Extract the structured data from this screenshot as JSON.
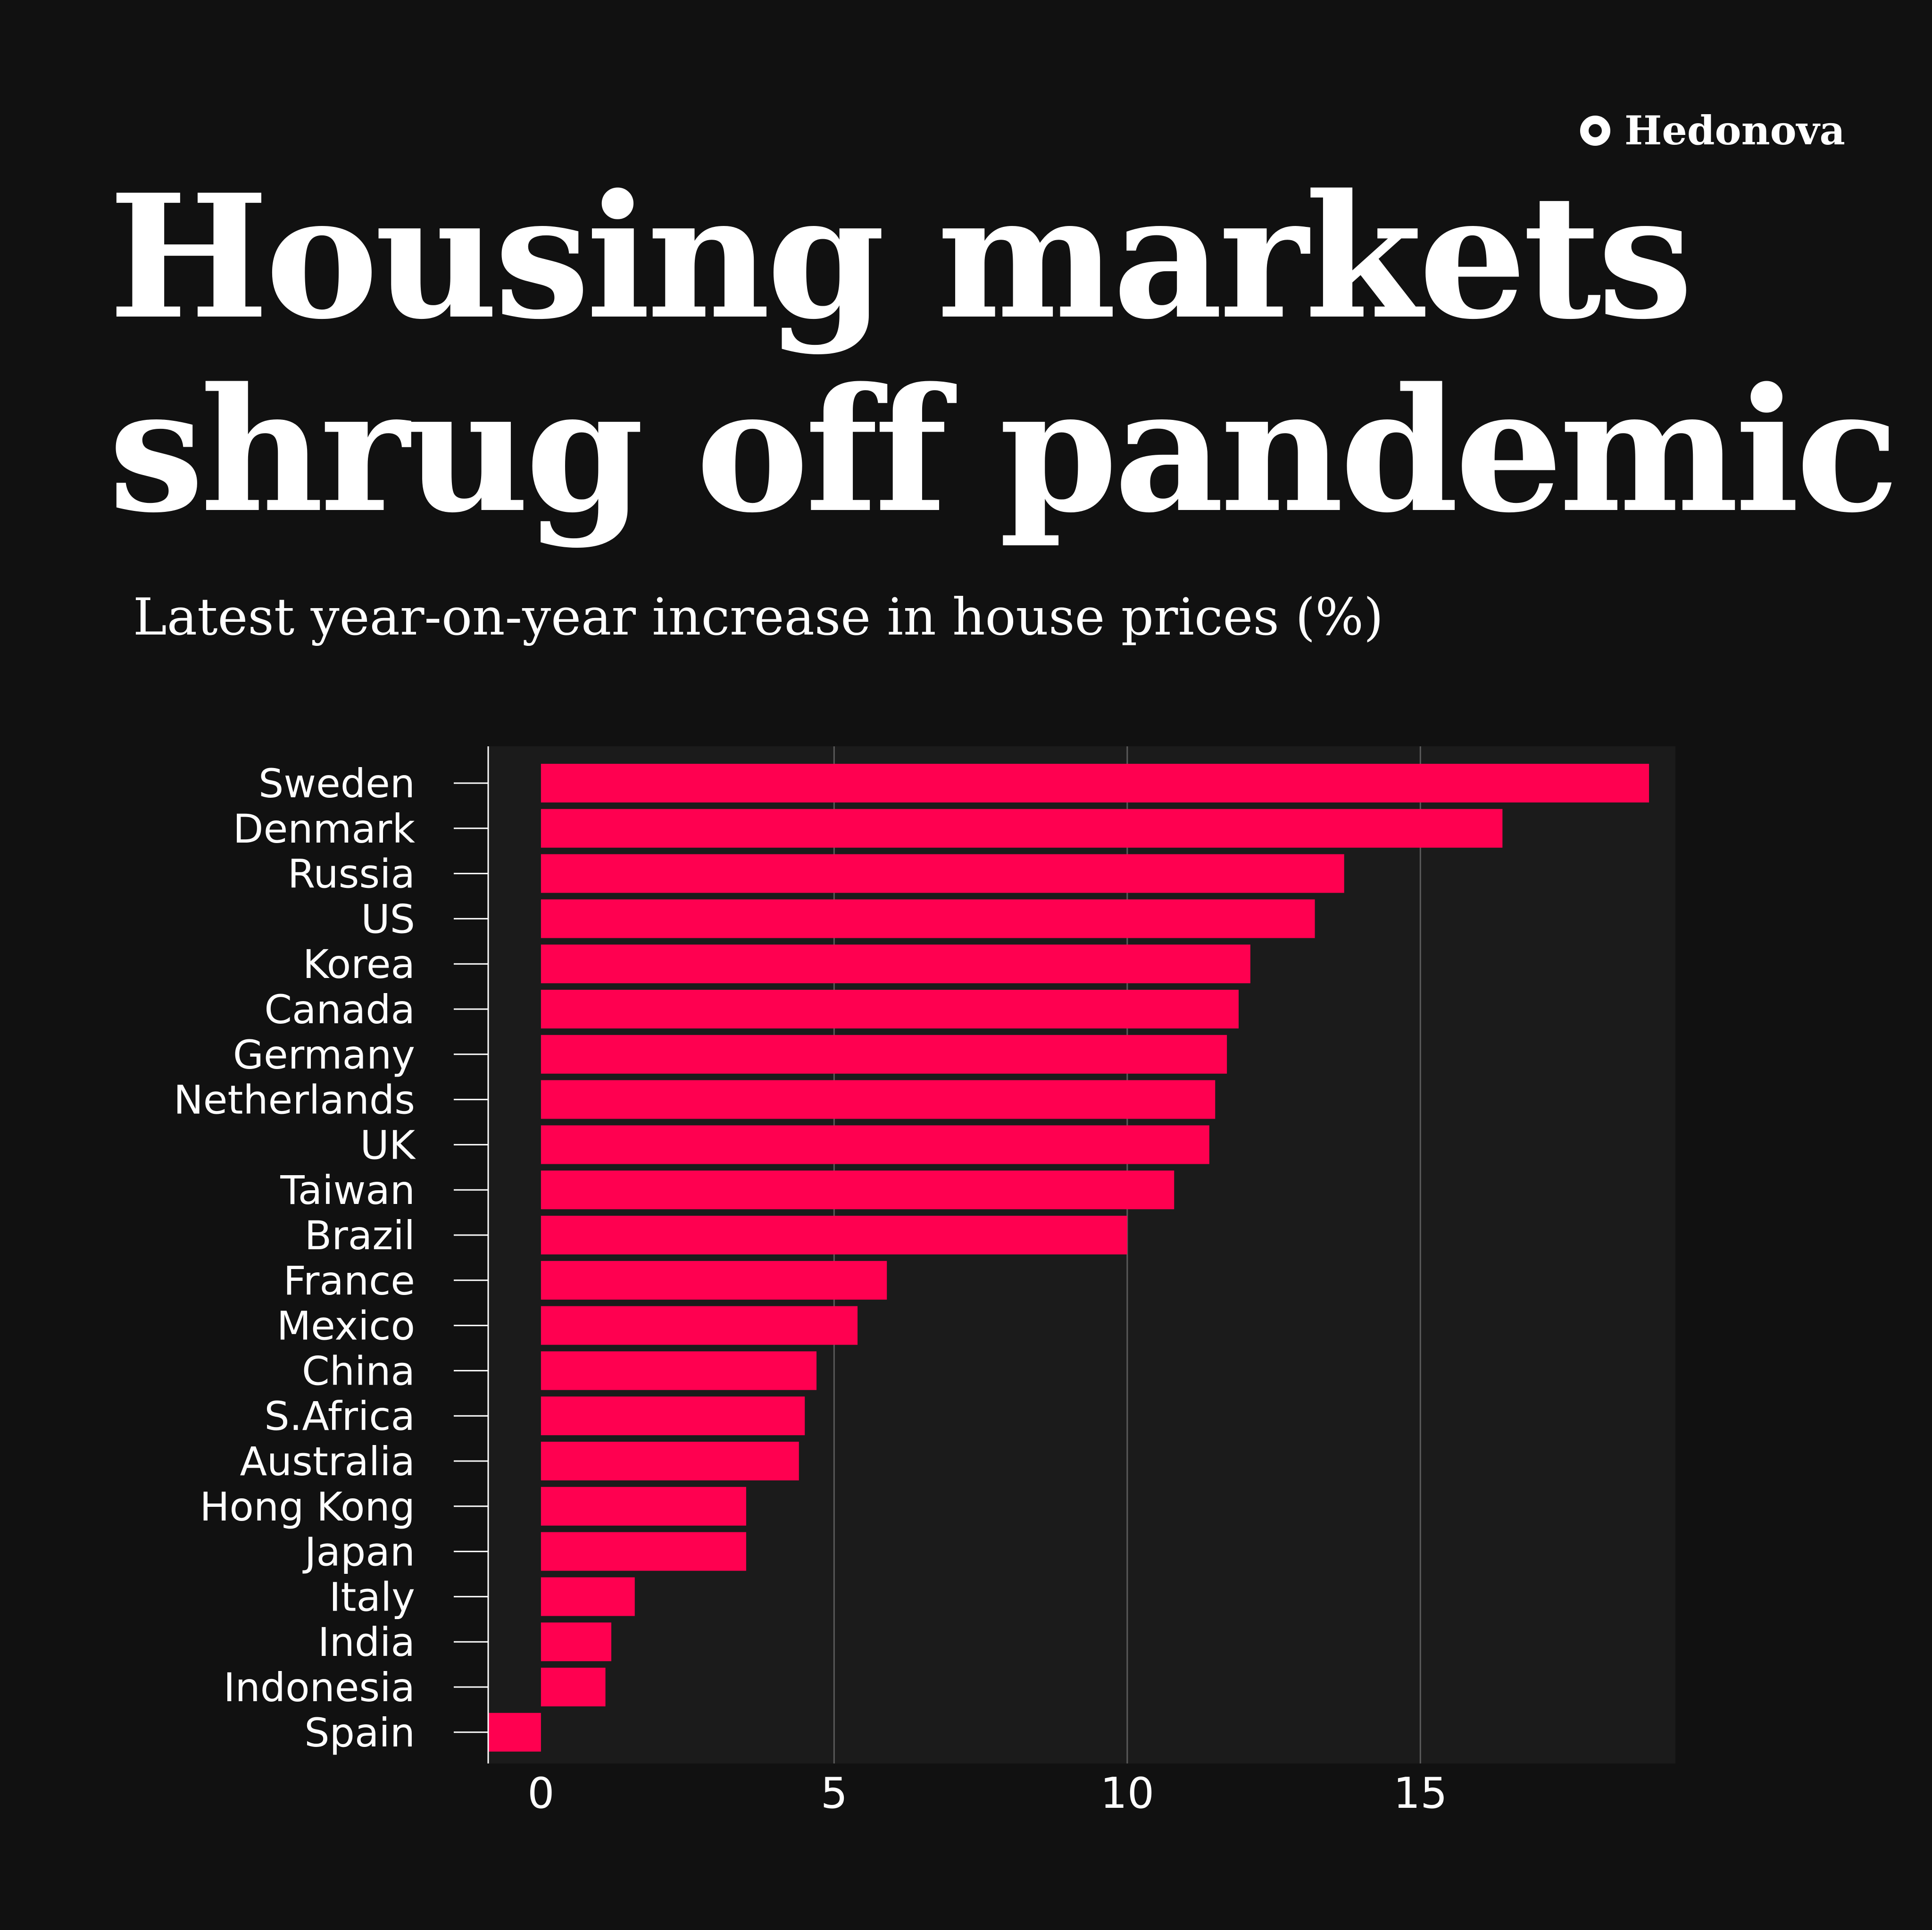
{
  "brand": {
    "name": "Hedonova",
    "icon": "ring-icon"
  },
  "title_lines": [
    "Housing markets",
    "shrug off pandemic"
  ],
  "colors": {
    "background": "#111111",
    "plot_background": "#1b1b1b",
    "bar": "#ff0050",
    "text": "#ffffff"
  },
  "chart_data": {
    "type": "bar",
    "orientation": "horizontal",
    "title": "Housing markets shrug off pandemic",
    "subtitle": "Latest year-on-year increase in house prices (%)",
    "xlabel": "",
    "ylabel": "",
    "categories": [
      "Sweden",
      "Denmark",
      "Russia",
      "US",
      "Korea",
      "Canada",
      "Germany",
      "Netherlands",
      "UK",
      "Taiwan",
      "Brazil",
      "France",
      "Mexico",
      "China",
      "S.Africa",
      "Australia",
      "Hong Kong",
      "Japan",
      "Italy",
      "India",
      "Indonesia",
      "Spain"
    ],
    "values": [
      18.9,
      16.4,
      13.7,
      13.2,
      12.1,
      11.9,
      11.7,
      11.5,
      11.4,
      10.8,
      10.0,
      5.9,
      5.4,
      4.7,
      4.5,
      4.4,
      3.5,
      3.5,
      1.6,
      1.2,
      1.1,
      -0.9
    ],
    "xlim": [
      -0.9,
      19.35
    ],
    "xticks": [
      0,
      5,
      10,
      15
    ],
    "grid": "vertical",
    "legend": "none"
  }
}
